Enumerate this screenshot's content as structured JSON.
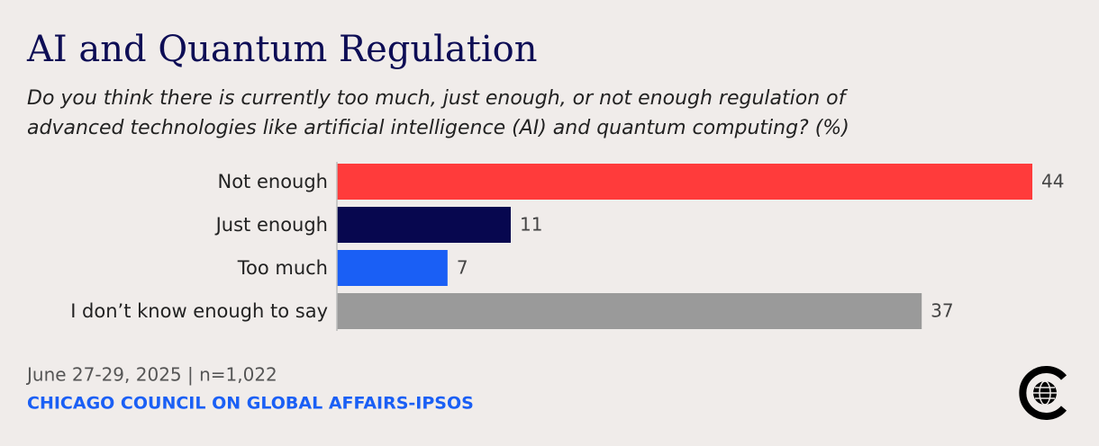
{
  "chart_data": {
    "type": "bar",
    "orientation": "horizontal",
    "title": "AI and Quantum Regulation",
    "subtitle": [
      "Do you think there is currently too much, just enough, or not enough regulation of",
      "advanced technologies like artificial intelligence (AI) and quantum computing? (%)"
    ],
    "categories": [
      "Not enough",
      "Just enough",
      "Too much",
      "I don’t know enough to say"
    ],
    "values": [
      44,
      11,
      7,
      37
    ],
    "colors": [
      "#ff3b3b",
      "#07074f",
      "#1a5ff5",
      "#9a9a9a"
    ],
    "note": "June 27-29, 2025 | n=1,022",
    "source": "CHICAGO COUNCIL ON GLOBAL AFFAIRS-IPSOS"
  }
}
